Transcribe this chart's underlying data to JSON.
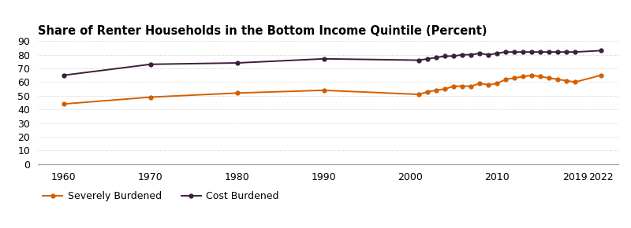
{
  "title": "Share of Renter Households in the Bottom Income Quintile (Percent)",
  "title_fontsize": 10.5,
  "title_fontweight": "bold",
  "ylim": [
    0,
    90
  ],
  "yticks": [
    0,
    10,
    20,
    30,
    40,
    50,
    60,
    70,
    80,
    90
  ],
  "background_color": "#ffffff",
  "severely_burdened": {
    "label": "Severely Burdened",
    "color": "#d45f00",
    "marker": "o",
    "markersize": 3.5,
    "linewidth": 1.4,
    "years": [
      1960,
      1970,
      1980,
      1990,
      2001,
      2002,
      2003,
      2004,
      2005,
      2006,
      2007,
      2008,
      2009,
      2010,
      2011,
      2012,
      2013,
      2014,
      2015,
      2016,
      2017,
      2018,
      2019,
      2022
    ],
    "values": [
      44,
      49,
      52,
      54,
      51,
      53,
      54,
      55,
      57,
      57,
      57,
      59,
      58,
      59,
      62,
      63,
      64,
      65,
      64,
      63,
      62,
      61,
      60,
      65
    ]
  },
  "cost_burdened": {
    "label": "Cost Burdened",
    "color": "#3b1f3b",
    "marker": "o",
    "markersize": 3.5,
    "linewidth": 1.4,
    "years": [
      1960,
      1970,
      1980,
      1990,
      2001,
      2002,
      2003,
      2004,
      2005,
      2006,
      2007,
      2008,
      2009,
      2010,
      2011,
      2012,
      2013,
      2014,
      2015,
      2016,
      2017,
      2018,
      2019,
      2022
    ],
    "values": [
      65,
      73,
      74,
      77,
      76,
      77,
      78,
      79,
      79,
      80,
      80,
      81,
      80,
      81,
      82,
      82,
      82,
      82,
      82,
      82,
      82,
      82,
      82,
      83
    ]
  },
  "xticks": [
    1960,
    1970,
    1980,
    1990,
    2000,
    2010,
    2019,
    2022
  ],
  "xtick_labels": [
    "1960",
    "1970",
    "1980",
    "1990",
    "2000",
    "2010",
    "2019",
    "2022"
  ],
  "xlim": [
    1957,
    2024
  ],
  "grid_color": "#cccccc",
  "grid_linestyle": ":",
  "grid_linewidth": 0.7,
  "tick_fontsize": 9,
  "legend_fontsize": 9
}
